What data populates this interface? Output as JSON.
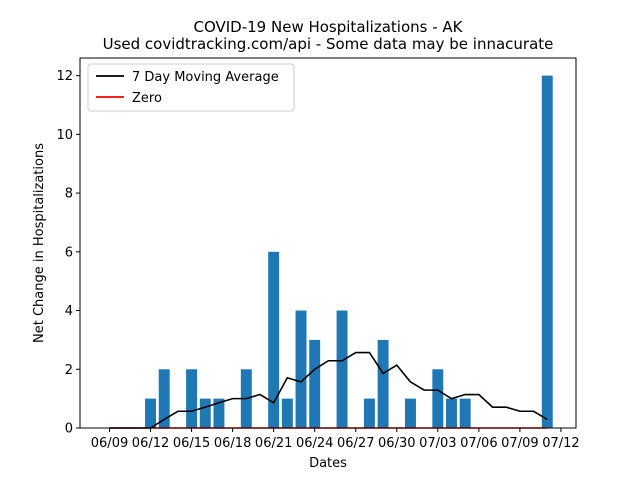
{
  "chart_data": {
    "type": "bar",
    "title": "COVID-19 New Hospitalizations - AK",
    "subtitle": "Used covidtracking.com/api - Some data may be innacurate",
    "xlabel": "Dates",
    "ylabel": "Net Change in Hospitalizations",
    "ylim": [
      0,
      12.6
    ],
    "yticks": [
      0,
      2,
      4,
      6,
      8,
      10,
      12
    ],
    "x_start_label": "06/09",
    "xtick_labels": [
      "06/09",
      "06/12",
      "06/15",
      "06/18",
      "06/21",
      "06/24",
      "06/27",
      "06/30",
      "07/03",
      "07/06",
      "07/09",
      "07/12"
    ],
    "dates": [
      "06/09",
      "06/10",
      "06/11",
      "06/12",
      "06/13",
      "06/14",
      "06/15",
      "06/16",
      "06/17",
      "06/18",
      "06/19",
      "06/20",
      "06/21",
      "06/22",
      "06/23",
      "06/24",
      "06/25",
      "06/26",
      "06/27",
      "06/28",
      "06/29",
      "06/30",
      "07/01",
      "07/02",
      "07/03",
      "07/04",
      "07/05",
      "07/06",
      "07/07",
      "07/08",
      "07/09",
      "07/10",
      "07/11"
    ],
    "series": [
      {
        "name": "7 Day Moving Average",
        "type": "line",
        "color": "#000000",
        "values": [
          0,
          0,
          0,
          0,
          0.29,
          0.57,
          0.57,
          0.71,
          0.86,
          1.0,
          1.0,
          1.14,
          0.86,
          1.71,
          1.57,
          2.0,
          2.29,
          2.29,
          2.57,
          2.57,
          1.86,
          2.14,
          1.57,
          1.29,
          1.29,
          1.0,
          1.14,
          1.14,
          0.71,
          0.71,
          0.57,
          0.57,
          0.29
        ]
      },
      {
        "name": "Zero",
        "type": "line",
        "color": "#ff0000",
        "values": [
          0,
          0,
          0,
          0,
          0,
          0,
          0,
          0,
          0,
          0,
          0,
          0,
          0,
          0,
          0,
          0,
          0,
          0,
          0,
          0,
          0,
          0,
          0,
          0,
          0,
          0,
          0,
          0,
          0,
          0,
          0,
          0,
          0
        ]
      },
      {
        "type": "bar",
        "color": "#1f77b4",
        "values": [
          0,
          0,
          0,
          1,
          2,
          0,
          2,
          1,
          1,
          0,
          2,
          0,
          6,
          1,
          4,
          3,
          0,
          4,
          0,
          1,
          3,
          0,
          1,
          0,
          2,
          1,
          1,
          0,
          0,
          0,
          0,
          0,
          12
        ]
      }
    ],
    "legend": {
      "placement": "top-left",
      "entries": [
        "7 Day Moving Average",
        "Zero"
      ]
    },
    "grid": false
  }
}
